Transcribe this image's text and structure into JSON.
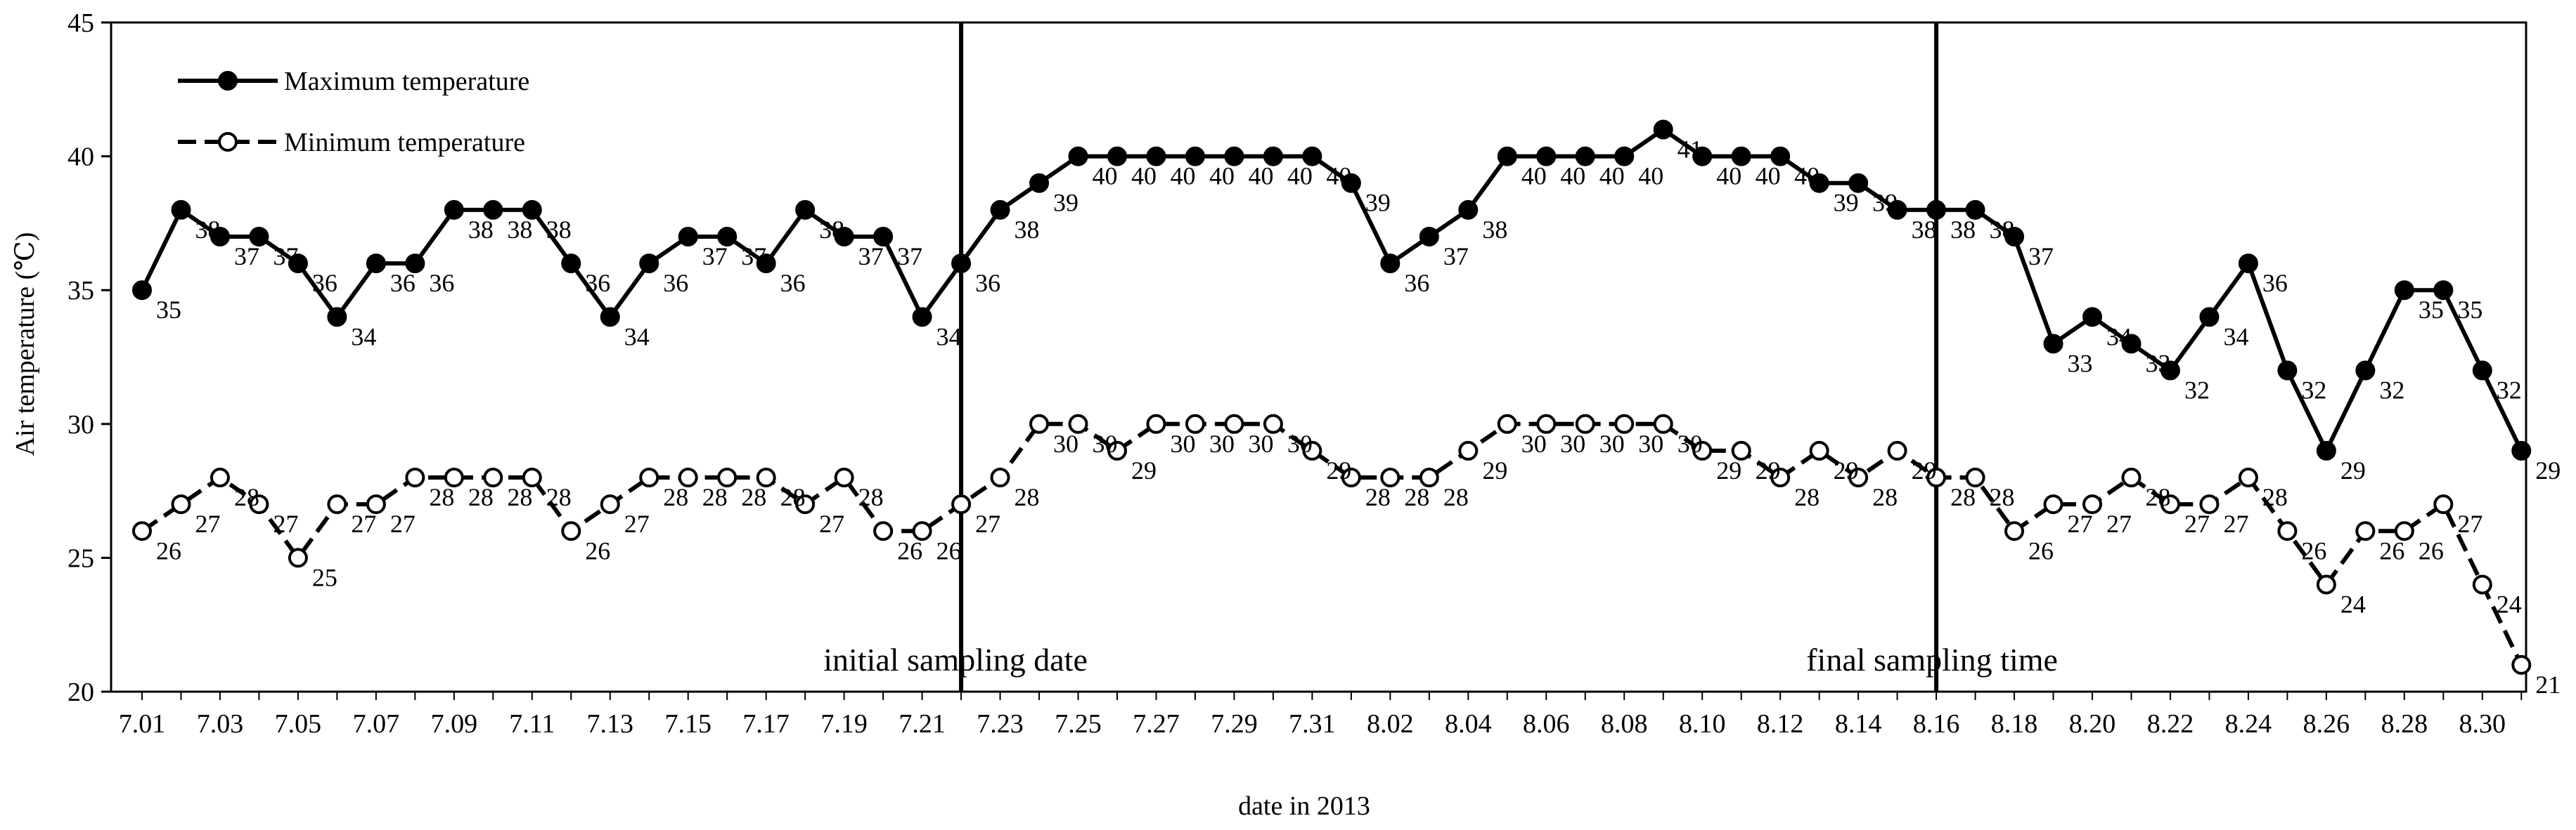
{
  "chart_data": {
    "type": "line",
    "xlabel": "date in 2013",
    "ylabel": "Air temperature (℃)",
    "ylim": [
      20,
      45
    ],
    "yticks": [
      20,
      25,
      30,
      35,
      40,
      45
    ],
    "grid": false,
    "legend_position": "top-left",
    "x": [
      "7.01",
      "7.02",
      "7.03",
      "7.04",
      "7.05",
      "7.06",
      "7.07",
      "7.08",
      "7.09",
      "7.10",
      "7.11",
      "7.12",
      "7.13",
      "7.14",
      "7.15",
      "7.16",
      "7.17",
      "7.18",
      "7.19",
      "7.20",
      "7.21",
      "7.22",
      "7.23",
      "7.24",
      "7.25",
      "7.26",
      "7.27",
      "7.28",
      "7.29",
      "7.30",
      "7.31",
      "8.01",
      "8.02",
      "8.03",
      "8.04",
      "8.05",
      "8.06",
      "8.07",
      "8.08",
      "8.09",
      "8.10",
      "8.11",
      "8.12",
      "8.13",
      "8.14",
      "8.15",
      "8.16",
      "8.17",
      "8.18",
      "8.19",
      "8.20",
      "8.21",
      "8.22",
      "8.23",
      "8.24",
      "8.25",
      "8.26",
      "8.27",
      "8.28",
      "8.29",
      "8.30",
      "8.31"
    ],
    "tick_labels": [
      "7.01",
      "7.03",
      "7.05",
      "7.07",
      "7.09",
      "7.11",
      "7.13",
      "7.15",
      "7.17",
      "7.19",
      "7.21",
      "7.23",
      "7.25",
      "7.27",
      "7.29",
      "7.31",
      "8.02",
      "8.04",
      "8.06",
      "8.08",
      "8.10",
      "8.12",
      "8.14",
      "8.16",
      "8.18",
      "8.20",
      "8.22",
      "8.24",
      "8.26",
      "8.28",
      "8.30"
    ],
    "series": [
      {
        "name": "Maximum temperature",
        "style": "solid",
        "marker": "filled-circle",
        "values": [
          35,
          38,
          37,
          37,
          36,
          34,
          36,
          36,
          38,
          38,
          38,
          36,
          34,
          36,
          37,
          37,
          36,
          38,
          37,
          37,
          34,
          36,
          38,
          39,
          40,
          40,
          40,
          40,
          40,
          40,
          40,
          39,
          36,
          37,
          38,
          40,
          40,
          40,
          40,
          41,
          40,
          40,
          40,
          39,
          39,
          38,
          38,
          38,
          37,
          33,
          34,
          33,
          32,
          34,
          36,
          32,
          29,
          32,
          35,
          35,
          32,
          29
        ]
      },
      {
        "name": "Minimum temperature",
        "style": "dashed",
        "marker": "open-circle",
        "values": [
          26,
          27,
          28,
          27,
          25,
          27,
          27,
          28,
          28,
          28,
          28,
          26,
          27,
          28,
          28,
          28,
          28,
          27,
          28,
          26,
          26,
          27,
          28,
          30,
          30,
          29,
          30,
          30,
          30,
          30,
          29,
          28,
          28,
          28,
          29,
          30,
          30,
          30,
          30,
          30,
          29,
          29,
          28,
          29,
          28,
          29,
          28,
          28,
          26,
          27,
          27,
          28,
          27,
          27,
          28,
          26,
          24,
          26,
          26,
          27,
          24,
          21
        ]
      }
    ],
    "vlines": [
      {
        "at": "7.22",
        "label": "initial sampling date"
      },
      {
        "at": "8.16",
        "label": "final sampling time"
      }
    ],
    "colors": {
      "line": "#000000",
      "background": "#ffffff"
    }
  }
}
